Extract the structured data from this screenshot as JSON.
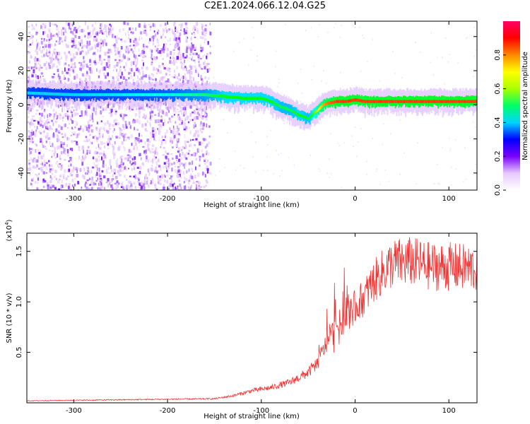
{
  "title": "C2E1.2024.066.12.04.G25",
  "colors": {
    "snr_line": "#ee3333",
    "low_amplitude": "#6a00ff",
    "mid_amplitude": "#00e676",
    "high_amplitude": "#ff2a2a",
    "axis": "#000000"
  },
  "chart_data": [
    {
      "type": "heatmap",
      "name": "spectrogram",
      "xlabel": "Height of straight line (km)",
      "ylabel": "Frequency (Hz)",
      "xlim": [
        -350,
        130
      ],
      "ylim": [
        -50,
        49
      ],
      "xticks": [
        -300,
        -200,
        -100,
        0,
        100
      ],
      "yticks": [
        -40,
        -20,
        0,
        20,
        40
      ],
      "colorbar": {
        "label": "Normalized spectral amplitude",
        "range": [
          0,
          1
        ],
        "ticks": [
          0.0,
          0.2,
          0.4,
          0.6,
          0.8
        ],
        "colormap": [
          "#ffffff",
          "#e7c8ff",
          "#7a00ff",
          "#0000ff",
          "#00d4ff",
          "#00ff66",
          "#aaff00",
          "#ffff00",
          "#ff8800",
          "#ff0000",
          "#ff0066"
        ]
      },
      "noise_region_x": [
        -350,
        -155
      ],
      "ridge": {
        "x": [
          -350,
          -300,
          -250,
          -200,
          -160,
          -140,
          -120,
          -100,
          -90,
          -80,
          -70,
          -60,
          -50,
          -45,
          -40,
          -35,
          -30,
          -20,
          -10,
          0,
          10,
          30,
          60,
          100,
          130
        ],
        "frequency": [
          7,
          6,
          6,
          6,
          6,
          5,
          4,
          4,
          2,
          -1,
          -3,
          -6,
          -8,
          -5,
          -3,
          0,
          1,
          2,
          2,
          3,
          2,
          2,
          2,
          2,
          2
        ],
        "amplitude": [
          0.3,
          0.3,
          0.32,
          0.35,
          0.45,
          0.55,
          0.55,
          0.55,
          0.55,
          0.5,
          0.5,
          0.55,
          0.5,
          0.6,
          0.75,
          0.85,
          0.9,
          0.95,
          0.95,
          0.95,
          0.95,
          0.95,
          0.95,
          0.95,
          0.95
        ]
      }
    },
    {
      "type": "line",
      "name": "snr",
      "xlabel": "Height of straight line (km)",
      "ylabel": "SNR (10 * v/v)",
      "multiplier_label": "(x10",
      "multiplier_exp": "4",
      "multiplier_close": ")",
      "xlim": [
        -350,
        130
      ],
      "ylim": [
        0,
        16800
      ],
      "xticks": [
        -300,
        -200,
        -100,
        0,
        100
      ],
      "yticks": [
        5000,
        10000,
        15000
      ],
      "ytick_labels": [
        "0.5",
        "1.0",
        "1.5"
      ],
      "trend": {
        "x": [
          -350,
          -250,
          -150,
          -130,
          -110,
          -90,
          -70,
          -50,
          -40,
          -30,
          -20,
          -10,
          0,
          10,
          20,
          30,
          40,
          60,
          80,
          100,
          130
        ],
        "y": [
          200,
          300,
          400,
          700,
          1200,
          1500,
          2000,
          3000,
          4000,
          6000,
          7500,
          8500,
          9500,
          10500,
          12000,
          13000,
          13800,
          14000,
          13500,
          13500,
          13300
        ]
      },
      "noise_amplitude_fraction": 0.18
    }
  ]
}
